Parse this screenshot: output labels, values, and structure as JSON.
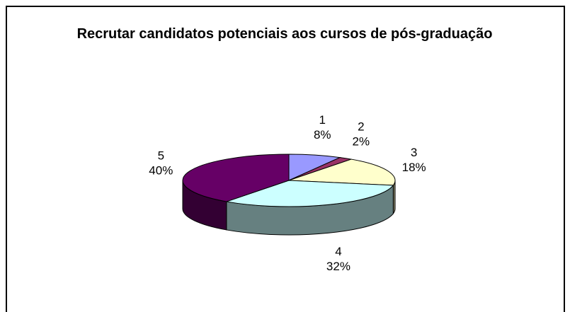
{
  "chart_data": {
    "type": "pie",
    "title": "Recrutar candidatos potenciais aos cursos de pós-graduação",
    "categories": [
      "1",
      "2",
      "3",
      "4",
      "5"
    ],
    "values": [
      8,
      2,
      18,
      32,
      40
    ],
    "value_labels": [
      "8%",
      "2%",
      "18%",
      "32%",
      "40%"
    ],
    "colors": [
      "#9999ff",
      "#993366",
      "#ffffcc",
      "#ccffff",
      "#660066"
    ]
  }
}
